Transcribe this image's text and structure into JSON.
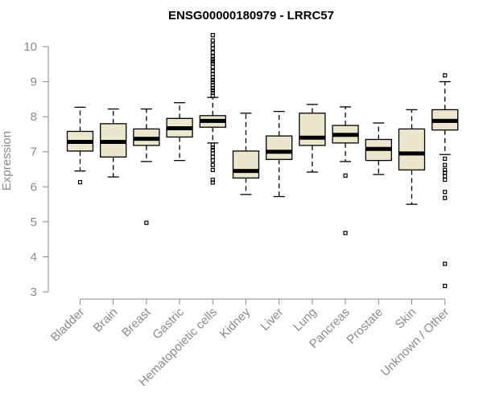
{
  "chart_data": {
    "type": "boxplot",
    "title": "ENSG00000180979 - LRRC57",
    "xlabel": "",
    "ylabel": "Expression",
    "ylim": [
      3,
      10.35
    ],
    "yticks": [
      "3",
      "4",
      "5",
      "6",
      "7",
      "8",
      "9",
      "10"
    ],
    "grid": false,
    "colors": {
      "box_fill": "#ece6cf",
      "box_stroke": "#000000",
      "median": "#000000",
      "axis": "#8a8a8a"
    },
    "categories": [
      "Bladder",
      "Brain",
      "Breast",
      "Gastric",
      "Hematopoietic cells",
      "Kidney",
      "Liver",
      "Lung",
      "Pancreas",
      "Prostate",
      "Skin",
      "Unknown / Other"
    ],
    "boxes": [
      {
        "label": "Bladder",
        "min": 6.45,
        "q1": 7.02,
        "median": 7.28,
        "q3": 7.58,
        "max": 8.27,
        "outliers": [
          6.13
        ]
      },
      {
        "label": "Brain",
        "min": 6.28,
        "q1": 6.85,
        "median": 7.28,
        "q3": 7.8,
        "max": 8.22,
        "outliers": []
      },
      {
        "label": "Breast",
        "min": 6.72,
        "q1": 7.18,
        "median": 7.37,
        "q3": 7.65,
        "max": 8.22,
        "outliers": [
          4.97
        ]
      },
      {
        "label": "Gastric",
        "min": 6.75,
        "q1": 7.42,
        "median": 7.67,
        "q3": 7.95,
        "max": 8.4,
        "outliers": []
      },
      {
        "label": "Hematopoietic cells",
        "min": 7.25,
        "q1": 7.7,
        "median": 7.88,
        "q3": 8.03,
        "max": 8.55,
        "outliers": [
          10.33,
          10.18,
          10.05,
          9.95,
          9.83,
          9.72,
          9.65,
          9.58,
          9.52,
          9.42,
          9.3,
          9.22,
          9.12,
          9.05,
          8.98,
          8.9,
          8.82,
          8.75,
          8.68,
          8.6,
          7.2,
          7.12,
          7.05,
          6.95,
          6.85,
          6.75,
          6.62,
          6.48,
          6.2,
          6.12
        ]
      },
      {
        "label": "Kidney",
        "min": 5.78,
        "q1": 6.25,
        "median": 6.45,
        "q3": 7.02,
        "max": 8.1,
        "outliers": []
      },
      {
        "label": "Liver",
        "min": 5.72,
        "q1": 6.78,
        "median": 7.0,
        "q3": 7.45,
        "max": 8.15,
        "outliers": []
      },
      {
        "label": "Lung",
        "min": 6.42,
        "q1": 7.18,
        "median": 7.4,
        "q3": 8.1,
        "max": 8.35,
        "outliers": []
      },
      {
        "label": "Pancreas",
        "min": 6.72,
        "q1": 7.25,
        "median": 7.48,
        "q3": 7.75,
        "max": 8.28,
        "outliers": [
          6.32,
          4.68
        ]
      },
      {
        "label": "Prostate",
        "min": 6.35,
        "q1": 6.75,
        "median": 7.08,
        "q3": 7.35,
        "max": 7.82,
        "outliers": []
      },
      {
        "label": "Skin",
        "min": 5.5,
        "q1": 6.48,
        "median": 6.95,
        "q3": 7.65,
        "max": 8.2,
        "outliers": []
      },
      {
        "label": "Unknown / Other",
        "min": 6.92,
        "q1": 7.62,
        "median": 7.88,
        "q3": 8.2,
        "max": 9.0,
        "outliers": [
          9.18,
          6.8,
          6.62,
          6.48,
          6.4,
          6.3,
          6.2,
          5.85,
          5.68,
          3.8,
          3.17
        ]
      }
    ]
  }
}
